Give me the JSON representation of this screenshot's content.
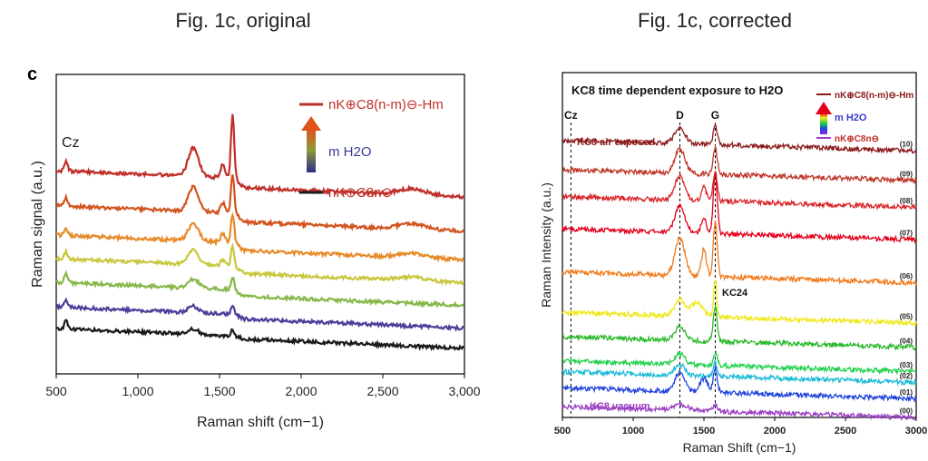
{
  "titles": {
    "left": "Fig. 1c, original",
    "right": "Fig. 1c, corrected"
  },
  "colors": {
    "left_series": [
      "#c0302a",
      "#d2541e",
      "#e78b2a",
      "#c8c73e",
      "#86b84a",
      "#4b3f9a",
      "#1a1a1a"
    ],
    "right_series": [
      "#8b1a1a",
      "#c0392b",
      "#d9262a",
      "#e4001b",
      "#f07a1a",
      "#f0e81c",
      "#2ab82a",
      "#22d24e",
      "#1ebbd8",
      "#2244dd",
      "#9a3fc2"
    ]
  },
  "chart_data": [
    {
      "type": "line",
      "panel_label": "c",
      "title": "",
      "xlabel": "Raman shift (cm−1)",
      "ylabel": "Raman signal (a.u.)",
      "xlim": [
        500,
        3000
      ],
      "x_ticks": [
        "500",
        "1,000",
        "1,500",
        "2,000",
        "2,500",
        "3,000"
      ],
      "annotations": {
        "peak_cz": "Cz"
      },
      "legend": {
        "position": "top-right",
        "top_entry": "nK⊕C8(n-m)⊖-Hm",
        "middle_entry": "m H2O",
        "bottom_entry": "nK⊕C8n⊖"
      },
      "series": [
        {
          "offset": 6.8,
          "peaks": [
            [
              560,
              0.35,
              15
            ],
            [
              1340,
              1.0,
              45
            ],
            [
              1520,
              0.45,
              18
            ],
            [
              1580,
              2.25,
              14
            ],
            [
              2680,
              0.22,
              120
            ]
          ],
          "tail": 0.55
        },
        {
          "offset": 5.6,
          "peaks": [
            [
              560,
              0.3,
              15
            ],
            [
              1340,
              0.85,
              45
            ],
            [
              1520,
              0.35,
              18
            ],
            [
              1580,
              1.4,
              14
            ],
            [
              2680,
              0.18,
              120
            ]
          ],
          "tail": 0.5
        },
        {
          "offset": 4.6,
          "peaks": [
            [
              560,
              0.25,
              15
            ],
            [
              1340,
              0.6,
              45
            ],
            [
              1520,
              0.28,
              18
            ],
            [
              1580,
              1.0,
              14
            ],
            [
              2680,
              0.15,
              120
            ]
          ],
          "tail": 0.45
        },
        {
          "offset": 3.8,
          "peaks": [
            [
              560,
              0.25,
              15
            ],
            [
              1340,
              0.5,
              45
            ],
            [
              1520,
              0.2,
              18
            ],
            [
              1580,
              0.7,
              14
            ],
            [
              2680,
              0.12,
              120
            ]
          ],
          "tail": 0.4
        },
        {
          "offset": 3.0,
          "peaks": [
            [
              560,
              0.3,
              15
            ],
            [
              1340,
              0.32,
              45
            ],
            [
              1580,
              0.45,
              14
            ]
          ],
          "tail": 0.35
        },
        {
          "offset": 2.2,
          "peaks": [
            [
              560,
              0.3,
              15
            ],
            [
              1340,
              0.22,
              45
            ],
            [
              1580,
              0.3,
              14
            ]
          ],
          "tail": 0.25
        },
        {
          "offset": 1.5,
          "peaks": [
            [
              560,
              0.3,
              15
            ],
            [
              1340,
              0.18,
              45
            ],
            [
              1580,
              0.22,
              14
            ]
          ],
          "tail": 0.15
        }
      ]
    },
    {
      "type": "line",
      "title": "KC8 time dependent exposure to H2O",
      "xlabel": "Raman Shift (cm−1)",
      "ylabel": "Raman Intensity (a.u.)",
      "xlim": [
        500,
        3000
      ],
      "x_ticks": [
        "500",
        "1000",
        "1500",
        "2000",
        "2500",
        "3000"
      ],
      "reference_lines": [
        {
          "x": 560,
          "label": "Cz"
        },
        {
          "x": 1330,
          "label": "D"
        },
        {
          "x": 1580,
          "label": "G"
        }
      ],
      "annotations": {
        "air": "KC8 air exposed",
        "vacuum": "KC8 vacuum",
        "kc24": "KC24"
      },
      "legend": {
        "position": "top-right",
        "top_entry": "nK⊕C8(n-m)⊖-Hm",
        "middle_entry": "m H2O",
        "bottom_entry": "nK⊕C8n⊖"
      },
      "series": [
        {
          "name": "(10)",
          "offset": 10.3,
          "peaks": [
            [
              1330,
              0.6,
              50
            ],
            [
              1580,
              0.7,
              20
            ]
          ]
        },
        {
          "name": "(09)",
          "offset": 9.2,
          "peaks": [
            [
              1330,
              0.9,
              50
            ],
            [
              1580,
              1.0,
              20
            ]
          ]
        },
        {
          "name": "(08)",
          "offset": 8.2,
          "peaks": [
            [
              1330,
              0.9,
              50
            ],
            [
              1500,
              0.5,
              25
            ],
            [
              1580,
              1.1,
              20
            ]
          ]
        },
        {
          "name": "(07)",
          "offset": 7.0,
          "peaks": [
            [
              1330,
              1.0,
              50
            ],
            [
              1500,
              0.6,
              25
            ],
            [
              1580,
              2.2,
              20
            ]
          ]
        },
        {
          "name": "(06)",
          "offset": 5.4,
          "peaks": [
            [
              1330,
              1.4,
              50
            ],
            [
              1500,
              1.0,
              25
            ],
            [
              1580,
              2.0,
              20
            ]
          ]
        },
        {
          "name": "(05)",
          "offset": 3.9,
          "peaks": [
            [
              1330,
              0.6,
              50
            ],
            [
              1450,
              0.5,
              60
            ],
            [
              1580,
              1.4,
              15
            ]
          ]
        },
        {
          "name": "(04)",
          "offset": 3.0,
          "peaks": [
            [
              1330,
              0.5,
              50
            ],
            [
              1580,
              1.3,
              20
            ]
          ]
        },
        {
          "name": "(03)",
          "offset": 2.1,
          "peaks": [
            [
              1330,
              0.4,
              50
            ],
            [
              1580,
              0.5,
              20
            ]
          ]
        },
        {
          "name": "(02)",
          "offset": 1.7,
          "peaks": [
            [
              1330,
              0.4,
              50
            ],
            [
              1580,
              0.5,
              20
            ]
          ]
        },
        {
          "name": "(01)",
          "offset": 1.1,
          "peaks": [
            [
              1330,
              0.7,
              50
            ],
            [
              1500,
              0.5,
              40
            ],
            [
              1580,
              0.9,
              20
            ]
          ]
        },
        {
          "name": "(00)",
          "offset": 0.4,
          "peaks": [
            [
              1330,
              0.2,
              80
            ],
            [
              1580,
              0.2,
              30
            ]
          ]
        }
      ]
    }
  ]
}
